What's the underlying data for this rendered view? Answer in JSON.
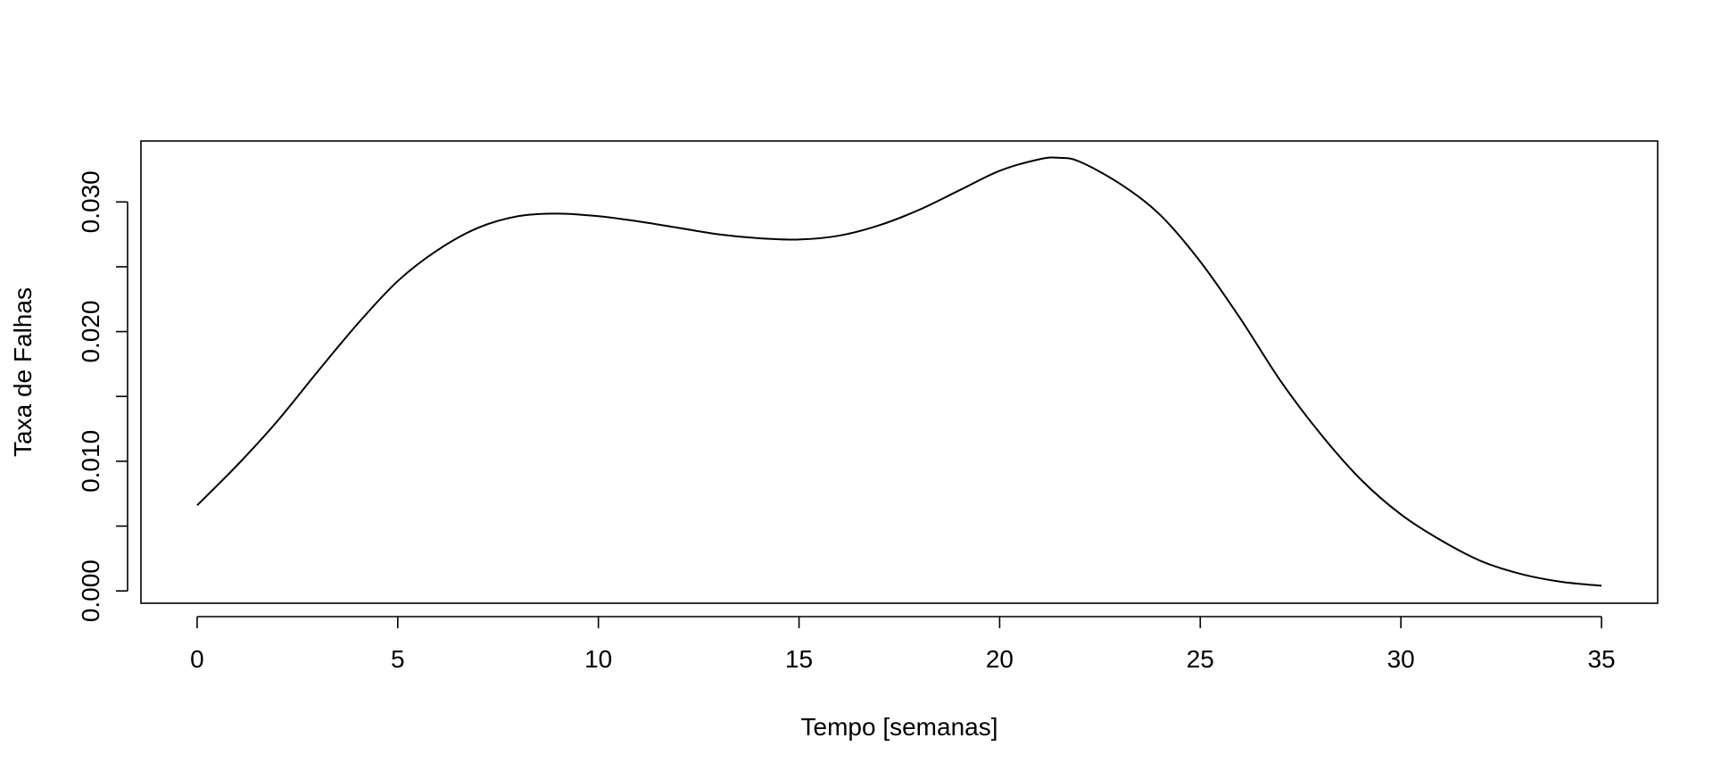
{
  "chart_data": {
    "type": "line",
    "title": "",
    "xlabel": "Tempo [semanas]",
    "ylabel": "Taxa de Falhas",
    "xlim": [
      -1.4,
      36.4
    ],
    "ylim": [
      -0.00095,
      0.0347
    ],
    "x_ticks": [
      0,
      5,
      10,
      15,
      20,
      25,
      30,
      35
    ],
    "x_tick_labels": [
      "0",
      "5",
      "10",
      "15",
      "20",
      "25",
      "30",
      "35"
    ],
    "y_ticks": [
      0.0,
      0.005,
      0.01,
      0.015,
      0.02,
      0.025,
      0.03
    ],
    "y_tick_labels": [
      "0.000",
      "0.010",
      "0.020",
      "0.030"
    ],
    "y_labeled_ticks": [
      0.0,
      0.01,
      0.02,
      0.03
    ],
    "grid": false,
    "legend": "none",
    "line_color": "#000000",
    "series": [
      {
        "x": [
          0,
          1,
          2,
          3,
          4,
          5,
          6,
          7,
          8,
          9,
          10,
          11,
          12,
          13,
          14,
          15,
          16,
          17,
          18,
          19,
          20,
          21,
          21.5,
          22,
          23,
          24,
          25,
          26,
          27,
          28,
          29,
          30,
          31,
          32,
          33,
          34,
          35
        ],
        "y": [
          0.0066,
          0.0097,
          0.0131,
          0.0169,
          0.0206,
          0.0239,
          0.0263,
          0.028,
          0.0289,
          0.0291,
          0.0289,
          0.0285,
          0.028,
          0.0275,
          0.0272,
          0.0271,
          0.0274,
          0.0282,
          0.0294,
          0.0309,
          0.0324,
          0.0333,
          0.0334,
          0.0331,
          0.0314,
          0.029,
          0.0254,
          0.021,
          0.0162,
          0.0121,
          0.0086,
          0.0059,
          0.0039,
          0.0023,
          0.0013,
          0.0007,
          0.0004
        ]
      }
    ]
  }
}
